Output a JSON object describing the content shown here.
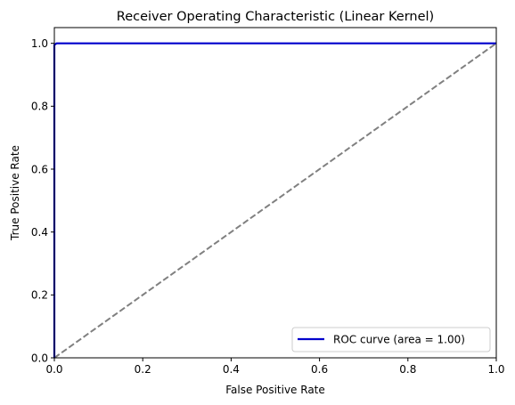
{
  "chart_data": {
    "type": "line",
    "title": "Receiver Operating Characteristic (Linear Kernel)",
    "xlabel": "False Positive Rate",
    "ylabel": "True Positive Rate",
    "xlim": [
      0.0,
      1.0
    ],
    "ylim": [
      0.0,
      1.05
    ],
    "xticks": [
      0.0,
      0.2,
      0.4,
      0.6,
      0.8,
      1.0
    ],
    "xtick_labels": [
      "0.0",
      "0.2",
      "0.4",
      "0.6",
      "0.8",
      "1.0"
    ],
    "yticks": [
      0.0,
      0.2,
      0.4,
      0.6,
      0.8,
      1.0
    ],
    "ytick_labels": [
      "0.0",
      "0.2",
      "0.4",
      "0.6",
      "0.8",
      "1.0"
    ],
    "grid": false,
    "legend_position": "lower right",
    "series": [
      {
        "name": "ROC curve (area = 1.00)",
        "color": "#0000cc",
        "style": "solid",
        "x": [
          0.0,
          0.0,
          0.005,
          1.0
        ],
        "y": [
          0.0,
          0.995,
          1.0,
          1.0
        ]
      },
      {
        "color": "#808080",
        "style": "dashed",
        "x": [
          0.0,
          1.0
        ],
        "y": [
          0.0,
          1.0
        ]
      }
    ]
  }
}
